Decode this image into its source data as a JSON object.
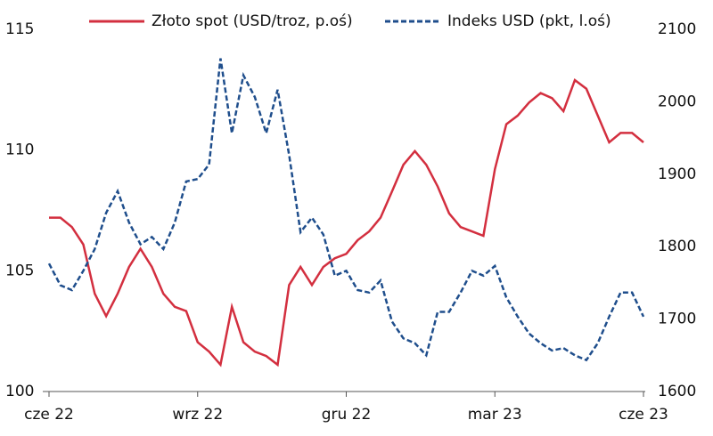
{
  "chart_data": {
    "type": "line",
    "categories": [
      "cze 22",
      null,
      null,
      null,
      null,
      null,
      null,
      null,
      null,
      null,
      null,
      null,
      null,
      "wrz 22",
      null,
      null,
      null,
      null,
      null,
      null,
      null,
      null,
      null,
      null,
      null,
      null,
      "gru 22",
      null,
      null,
      null,
      null,
      null,
      null,
      null,
      null,
      null,
      null,
      null,
      null,
      "mar 23",
      null,
      null,
      null,
      null,
      null,
      null,
      null,
      null,
      null,
      null,
      null,
      null,
      "cze 23"
    ],
    "series": [
      {
        "name": "Złoto spot (USD/troz, p.oś)",
        "color": "#d32f3f",
        "line_style": "solid",
        "axis": "y2",
        "values": [
          1840,
          1840,
          1827,
          1803,
          1735,
          1704,
          1735,
          1772,
          1797,
          1772,
          1735,
          1717,
          1711,
          1668,
          1655,
          1637,
          1717,
          1668,
          1655,
          1649,
          1637,
          1747,
          1772,
          1747,
          1772,
          1784,
          1790,
          1809,
          1821,
          1840,
          1876,
          1913,
          1932,
          1913,
          1883,
          1846,
          1827,
          1821,
          1815,
          1907,
          1969,
          1981,
          1999,
          2012,
          2005,
          1987,
          2030,
          2018,
          1981,
          1944,
          1957,
          1957,
          1944
        ]
      },
      {
        "name": "Indeks USD (pkt, l.oś)",
        "color": "#1f4e8c",
        "line_style": "dashed",
        "axis": "y",
        "values": [
          105.3,
          104.4,
          104.2,
          105.0,
          105.9,
          107.4,
          108.3,
          107.0,
          106.1,
          106.4,
          105.9,
          107.0,
          108.7,
          108.8,
          109.4,
          113.8,
          110.7,
          113.1,
          112.2,
          110.7,
          112.5,
          109.8,
          106.6,
          107.2,
          106.5,
          104.8,
          105.0,
          104.2,
          104.1,
          104.6,
          102.9,
          102.2,
          102.0,
          101.5,
          103.3,
          103.3,
          104.1,
          105.0,
          104.8,
          105.2,
          103.9,
          103.1,
          102.4,
          102.0,
          101.7,
          101.8,
          101.5,
          101.3,
          102.0,
          103.1,
          104.1,
          104.1,
          103.1
        ]
      }
    ],
    "ylim": [
      100,
      115
    ],
    "yticks": [
      100,
      105,
      110,
      115
    ],
    "y2lim": [
      1600,
      2100
    ],
    "y2ticks": [
      1600,
      1700,
      1800,
      1900,
      2000,
      2100
    ],
    "grid": false,
    "legend": "top"
  }
}
